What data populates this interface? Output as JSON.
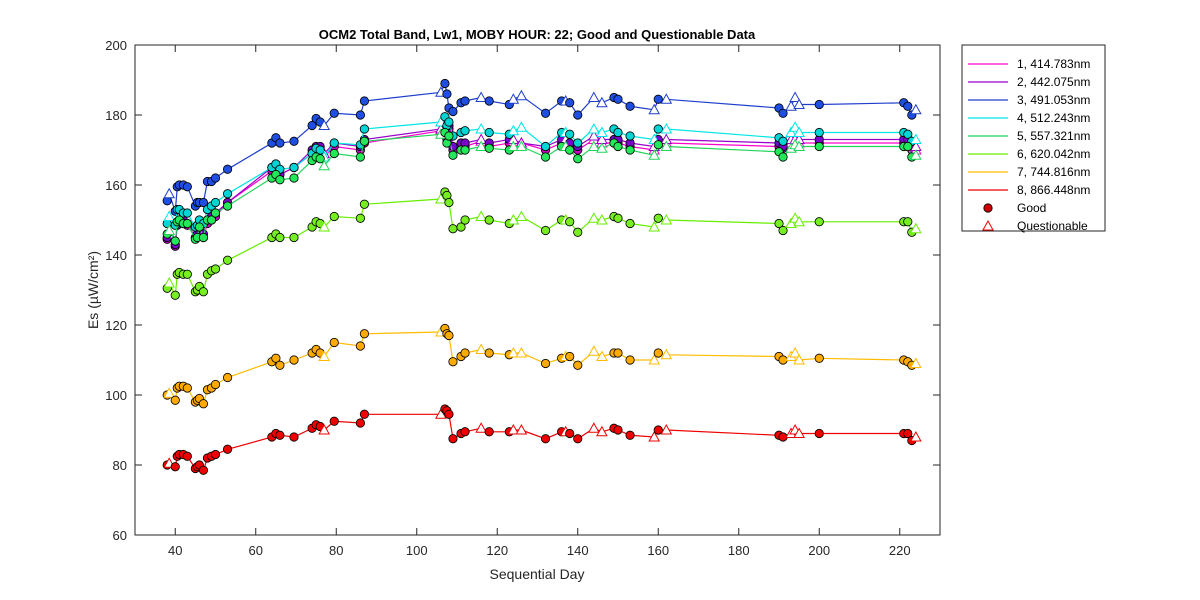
{
  "chart_data": {
    "type": "line",
    "title": "OCM2 Total Band,  Lw1, MOBY HOUR: 22;  Good and Questionable Data",
    "xlabel": "Sequential Day",
    "ylabel": "Es (µW/cm²)",
    "xlim": [
      30,
      230
    ],
    "ylim": [
      60,
      200
    ],
    "xticks": [
      40,
      60,
      80,
      100,
      120,
      140,
      160,
      180,
      200,
      220
    ],
    "yticks": [
      60,
      80,
      100,
      120,
      140,
      160,
      180,
      200
    ],
    "grid": false,
    "legend_position": "outside-right",
    "x": [
      38,
      38.5,
      40,
      40.5,
      41,
      42,
      43,
      45,
      45.5,
      46,
      47,
      48,
      49,
      50,
      53,
      64,
      65,
      66,
      69.5,
      74,
      75,
      76,
      77,
      79.5,
      86,
      87,
      106,
      107,
      107.5,
      108,
      109,
      111,
      112,
      116,
      118,
      123,
      124,
      126,
      132,
      136,
      137,
      138,
      140,
      144,
      146,
      149,
      150,
      153,
      159,
      160,
      162,
      190,
      191,
      193,
      194,
      195,
      200,
      221,
      222,
      223,
      224
    ],
    "quality": [
      "G",
      "Q",
      "G",
      "G",
      "G",
      "G",
      "G",
      "G",
      "G",
      "G",
      "G",
      "G",
      "G",
      "G",
      "G",
      "G",
      "G",
      "G",
      "G",
      "G",
      "G",
      "G",
      "Q",
      "G",
      "G",
      "G",
      "Q",
      "G",
      "G",
      "G",
      "G",
      "G",
      "G",
      "Q",
      "G",
      "G",
      "Q",
      "Q",
      "G",
      "G",
      "Q",
      "G",
      "G",
      "Q",
      "Q",
      "G",
      "G",
      "G",
      "Q",
      "G",
      "Q",
      "G",
      "G",
      "Q",
      "Q",
      "Q",
      "G",
      "G",
      "G",
      "G",
      "Q"
    ],
    "series": [
      {
        "name": "1, 414.783nm",
        "color": "#ff00cc",
        "fill": "#cc00cc",
        "values": [
          144.5,
          146,
          142.5,
          148.5,
          150,
          149,
          148.5,
          145,
          146,
          146,
          145,
          149,
          150,
          151,
          155,
          164,
          165,
          163,
          165,
          169,
          170,
          170,
          168,
          171,
          170,
          172,
          175.5,
          177,
          173,
          176,
          170,
          171,
          171,
          172.5,
          171,
          172,
          172.5,
          172,
          170,
          172,
          172,
          171,
          170,
          173,
          172,
          172,
          172,
          171,
          170,
          172,
          172,
          171,
          170.5,
          172,
          172,
          172,
          172,
          172,
          172,
          170,
          170
        ]
      },
      {
        "name": "2, 442.075nm",
        "color": "#9900cc",
        "fill": "#7a00cc",
        "values": [
          145,
          146,
          143,
          149,
          150,
          150,
          149,
          145,
          146,
          147,
          146,
          150,
          151,
          152,
          155,
          165,
          166,
          163,
          165,
          170,
          171,
          171,
          169,
          172,
          171,
          173,
          176,
          177.5,
          174,
          177,
          171,
          172,
          172,
          173,
          172,
          173,
          173,
          172,
          171,
          173,
          173,
          172,
          171,
          174,
          173,
          173,
          173,
          172,
          171,
          173,
          173,
          172,
          171,
          173,
          173,
          173,
          173,
          173,
          173,
          171,
          171
        ]
      },
      {
        "name": "3, 491.053nm",
        "color": "#1f3fcc",
        "fill": "#1f4fe0",
        "values": [
          155.5,
          157.5,
          152.5,
          159.5,
          160,
          160,
          159.5,
          154,
          155,
          155,
          155,
          161,
          161,
          162,
          164.5,
          172,
          173.5,
          172,
          172.5,
          177,
          179,
          178,
          177,
          180.5,
          180,
          184,
          186.5,
          189,
          186,
          182,
          181,
          183.5,
          184,
          185,
          184,
          183,
          184.5,
          185.5,
          180.5,
          184,
          184,
          183.5,
          180,
          185,
          183.5,
          185,
          184.5,
          182.5,
          181.5,
          184.5,
          184.5,
          182,
          180.5,
          182.5,
          185,
          183,
          183,
          183.5,
          182.5,
          180,
          181.5
        ]
      },
      {
        "name": "4, 512.243nm",
        "color": "#00e5e5",
        "fill": "#00d5d5",
        "values": [
          149,
          151,
          148.5,
          153,
          153,
          152,
          152,
          148,
          148.5,
          150,
          149,
          153,
          154,
          155,
          157.5,
          165,
          166,
          164.5,
          165,
          169,
          170.5,
          170,
          168,
          172,
          171.5,
          176,
          178,
          179.5,
          177,
          178,
          174,
          175,
          175.5,
          176,
          175,
          174.5,
          175.5,
          176.5,
          171,
          175,
          175,
          174.5,
          172,
          176,
          175,
          176,
          175,
          174,
          173,
          176,
          176,
          173.5,
          172.5,
          175,
          176.5,
          175,
          175,
          175,
          174.5,
          172.5,
          173
        ]
      },
      {
        "name": "5, 557.321nm",
        "color": "#22d45a",
        "fill": "#22e85a",
        "values": [
          146,
          147,
          144,
          149.5,
          150,
          149,
          149,
          144.5,
          145,
          148,
          145,
          150,
          150,
          152,
          154,
          162,
          163,
          161.5,
          162,
          167,
          168,
          167.5,
          165.5,
          169,
          168,
          172.5,
          174.5,
          175,
          172,
          174,
          168.5,
          170,
          170,
          171,
          170.5,
          170,
          171,
          171,
          168,
          171,
          171,
          170,
          167.5,
          171,
          170.5,
          172,
          171,
          170,
          168.5,
          171.5,
          171,
          169.5,
          168,
          170.5,
          171.5,
          171,
          171,
          171,
          171,
          168,
          168.5
        ]
      },
      {
        "name": "6, 620.042nm",
        "color": "#66ee00",
        "fill": "#77ee22",
        "values": [
          130.5,
          132,
          128.5,
          134.5,
          135,
          134.5,
          134.5,
          129.5,
          130,
          131,
          129.5,
          134.5,
          135.5,
          136,
          138.5,
          145,
          146,
          145,
          145,
          148,
          149.5,
          149,
          148,
          151,
          150.5,
          154.5,
          156,
          158,
          157,
          155,
          147.5,
          148,
          150,
          151,
          150,
          149,
          150,
          151,
          147,
          150,
          150,
          149.5,
          146.5,
          150.5,
          150,
          151,
          150.5,
          149,
          148,
          150.5,
          150,
          149,
          147,
          149,
          150.5,
          149.5,
          149.5,
          149.5,
          149.5,
          146.5,
          147.5
        ]
      },
      {
        "name": "7, 744.816nm",
        "color": "#ffbb00",
        "fill": "#ffaa00",
        "values": [
          100,
          100.5,
          98.5,
          102,
          102.5,
          102.5,
          102,
          98,
          98.5,
          99,
          97.5,
          101.5,
          102,
          103,
          105,
          109.5,
          110.5,
          108.5,
          110,
          112,
          113,
          112,
          111,
          115,
          114,
          117.5,
          118,
          119,
          117.5,
          117,
          109.5,
          111,
          112,
          113,
          112,
          111.5,
          112,
          112,
          109,
          110.5,
          111,
          111,
          108.5,
          112.5,
          111,
          112,
          112,
          110,
          110,
          112,
          111.5,
          111,
          110,
          111,
          112,
          110,
          110.5,
          110,
          109.5,
          108.5,
          109
        ]
      },
      {
        "name": "8, 866.448nm",
        "color": "#ee0000",
        "fill": "#ee0000",
        "values": [
          80,
          80.5,
          79.5,
          82.5,
          83,
          83,
          82.5,
          79,
          79.5,
          80,
          78.5,
          82,
          82.5,
          83,
          84.5,
          88,
          89,
          88.5,
          88,
          90.5,
          91.5,
          91,
          90,
          92.5,
          92,
          94.5,
          94.5,
          96,
          95.5,
          94.5,
          87.5,
          89,
          89.5,
          90.5,
          89.5,
          89.5,
          90,
          90,
          87.5,
          89.5,
          89.5,
          89,
          87.5,
          90.5,
          89.5,
          90.5,
          90,
          88.5,
          88,
          90,
          90,
          88.5,
          88,
          89,
          90,
          89,
          89,
          89,
          89,
          87,
          88
        ]
      }
    ],
    "legend_markers": [
      {
        "label": "Good",
        "marker": "circle",
        "color": "#cc0000"
      },
      {
        "label": "Questionable",
        "marker": "triangle",
        "color": "#ee0000"
      }
    ]
  }
}
